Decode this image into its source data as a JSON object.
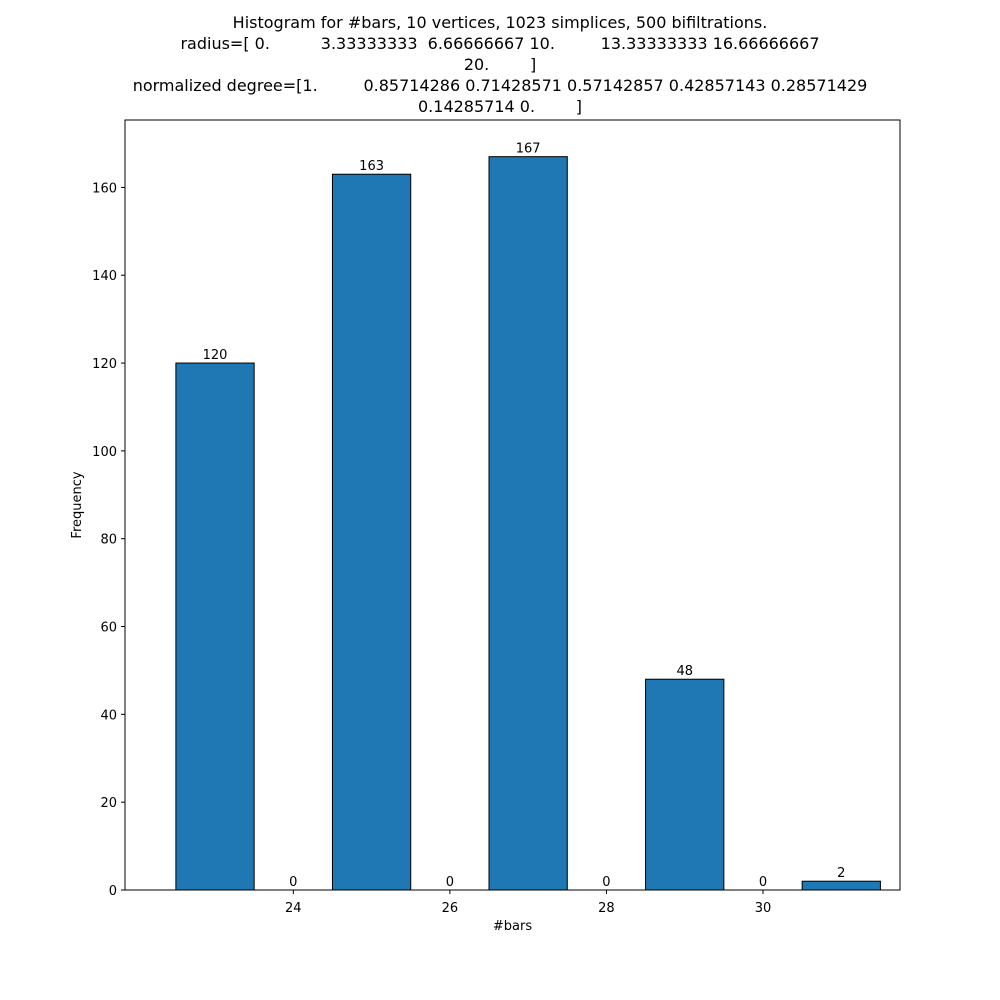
{
  "chart_data": {
    "type": "bar",
    "title_lines": [
      "Histogram for #bars, 10 vertices, 1023 simplices, 500 bifiltrations.",
      "radius=[ 0.          3.33333333  6.66666667 10.         13.33333333 16.66666667",
      "20.        ]",
      "normalized degree=[1.         0.85714286 0.71428571 0.57142857 0.42857143 0.28571429",
      "0.14285714 0.        ]"
    ],
    "xlabel": "#bars",
    "ylabel": "Frequency",
    "x": [
      23,
      24,
      25,
      26,
      27,
      28,
      29,
      30,
      31
    ],
    "values": [
      120,
      0,
      163,
      0,
      167,
      0,
      48,
      0,
      2
    ],
    "bar_width": 1,
    "xlim": [
      21.85,
      31.75
    ],
    "ylim": [
      0,
      175.35
    ],
    "xticks": [
      24,
      26,
      28,
      30
    ],
    "yticks": [
      0,
      20,
      40,
      60,
      80,
      100,
      120,
      140,
      160
    ],
    "bar_color": "#1f77b4",
    "edge_color": "#000000",
    "grid": false,
    "data_labels": true
  }
}
